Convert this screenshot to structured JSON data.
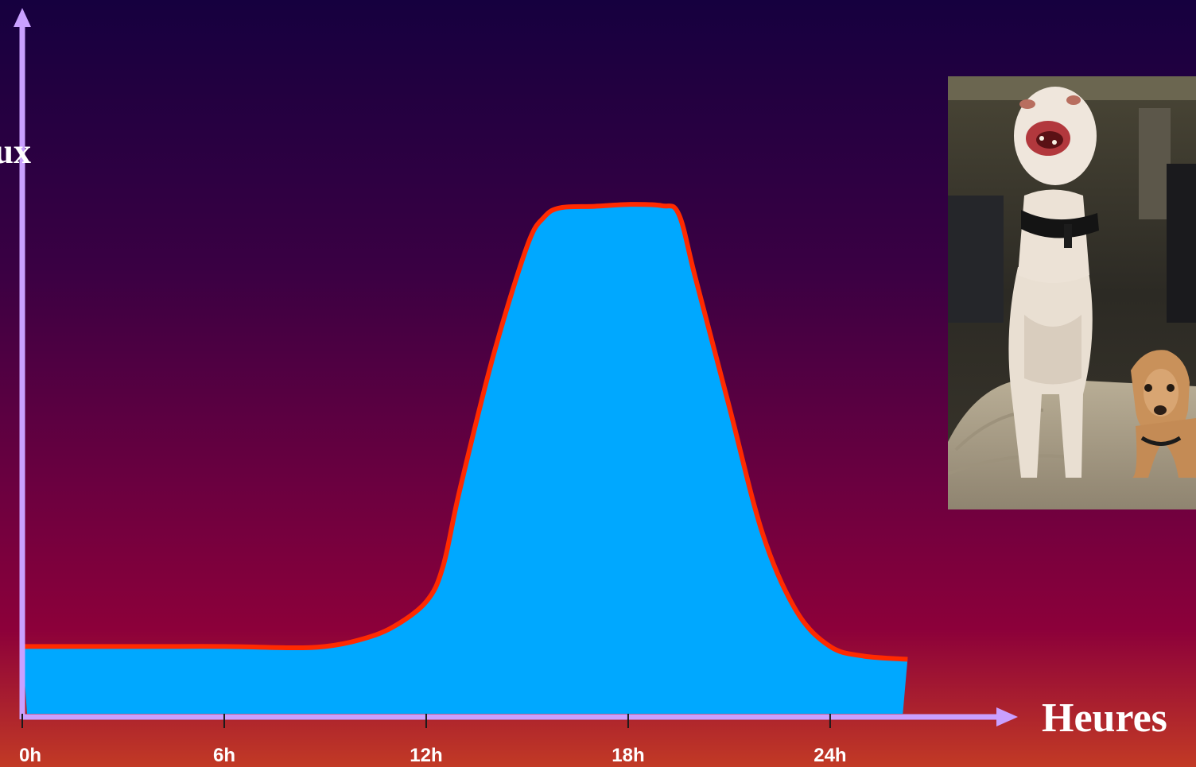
{
  "chart_data": {
    "type": "area",
    "xlabel": "Heures",
    "ylabel": "ux",
    "x_ticks": [
      "0h",
      "6h",
      "12h",
      "18h",
      "24h"
    ],
    "xlim": [
      0,
      26.5
    ],
    "ylim": [
      0,
      10
    ],
    "grid": false,
    "x": [
      0,
      2,
      4,
      6,
      8,
      9,
      10,
      11,
      12,
      12.5,
      13,
      14,
      15,
      15.5,
      16,
      17,
      18,
      19,
      19.5,
      20,
      21,
      22,
      23,
      24,
      25,
      26.3
    ],
    "values": [
      1.05,
      1.05,
      1.05,
      1.05,
      1.03,
      1.05,
      1.15,
      1.35,
      1.75,
      2.3,
      3.5,
      5.6,
      7.3,
      7.75,
      7.9,
      7.92,
      7.95,
      7.93,
      7.8,
      6.8,
      4.8,
      2.8,
      1.6,
      1.05,
      0.9,
      0.85
    ],
    "fill_color": "#00a8ff",
    "line_color": "#ff2a00",
    "axis_color": "#c9a0ff"
  },
  "photo": {
    "subject": "two-dogs-photo"
  }
}
